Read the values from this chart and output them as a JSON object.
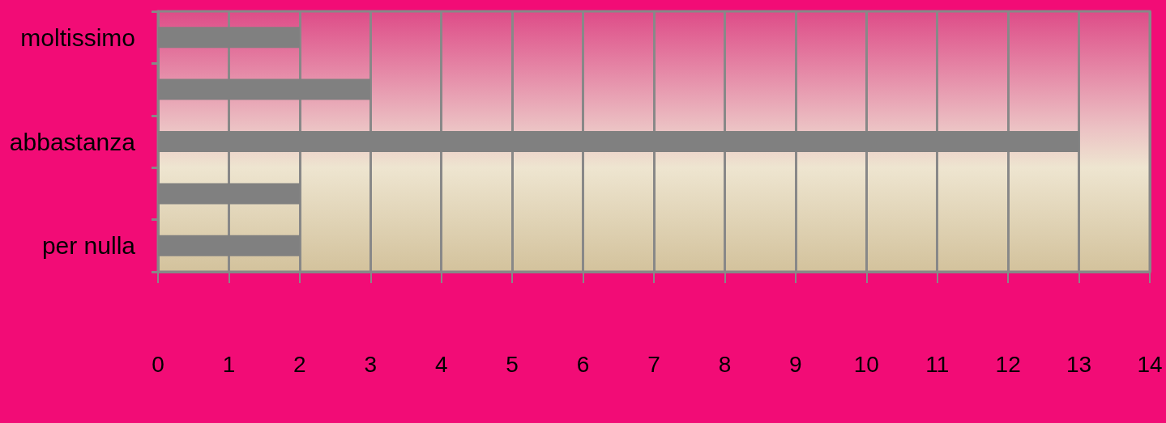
{
  "chart_data": {
    "type": "bar",
    "orientation": "horizontal",
    "categories": [
      "moltissimo",
      null,
      "abbastanza",
      null,
      "per nulla"
    ],
    "values": [
      2,
      3,
      13,
      2,
      2
    ],
    "color": "#808080",
    "xlim": [
      0,
      14
    ],
    "xticks": [
      0,
      1,
      2,
      3,
      4,
      5,
      6,
      7,
      8,
      9,
      10,
      11,
      12,
      13,
      14
    ],
    "grid": "x"
  }
}
